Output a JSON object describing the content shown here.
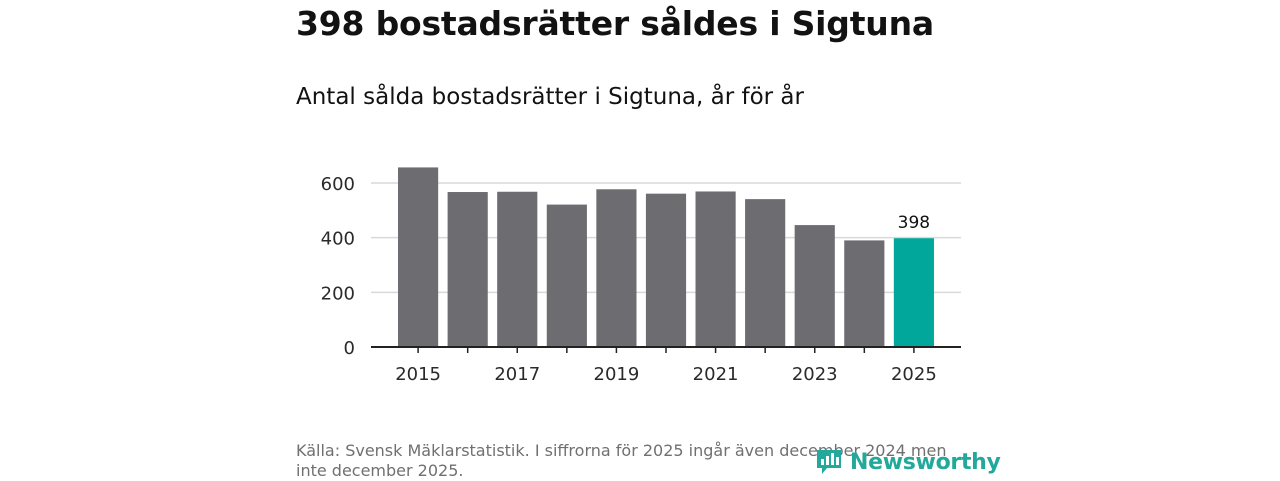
{
  "title": "398 bostadsrätter såldes i Sigtuna",
  "subtitle": "Antal sålda bostadsrätter i Sigtuna, år för år",
  "source": "Källa: Svensk Mäklarstatistik. I siffrorna för 2025 ingår även december 2024 men inte december 2025.",
  "logo_text": "Newsworthy",
  "colors": {
    "bar": "#6d6c71",
    "highlight": "#00a79a",
    "grid": "#d9d9d9",
    "axis": "#222222"
  },
  "chart_data": {
    "type": "bar",
    "title": "Antal sålda bostadsrätter i Sigtuna, år för år",
    "xlabel": "",
    "ylabel": "",
    "categories": [
      "2015",
      "2016",
      "2017",
      "2018",
      "2019",
      "2020",
      "2021",
      "2022",
      "2023",
      "2024",
      "2025"
    ],
    "values": [
      657,
      567,
      568,
      521,
      577,
      561,
      569,
      541,
      446,
      390,
      398
    ],
    "highlight_index": 10,
    "data_labels": [
      {
        "index": 10,
        "text": "398"
      }
    ],
    "x_tick_labels": [
      "2015",
      "",
      "2017",
      "",
      "2019",
      "",
      "2021",
      "",
      "2023",
      "",
      "2025"
    ],
    "yticks": [
      0,
      200,
      400,
      600
    ],
    "ytick_labels": [
      "0",
      "200",
      "400",
      "600"
    ],
    "ylim": [
      0,
      600
    ],
    "grid": true,
    "legend": "none"
  }
}
